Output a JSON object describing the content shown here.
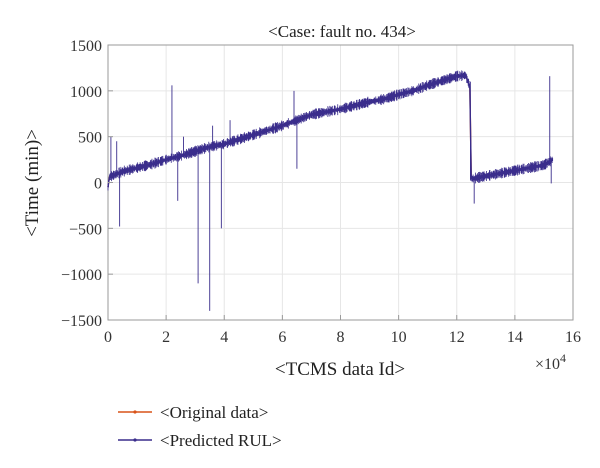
{
  "chart_data": {
    "type": "line",
    "title": "<Case: fault no. 434>",
    "xlabel": "<TCMS data Id>",
    "ylabel": "<Time (min)>",
    "x_multiplier": {
      "base": "×10",
      "exponent": "4"
    },
    "xlim": [
      0,
      16
    ],
    "ylim": [
      -1500,
      1500
    ],
    "x_ticks": [
      "0",
      "2",
      "4",
      "6",
      "8",
      "10",
      "12",
      "14",
      "16"
    ],
    "y_ticks": [
      "−1500",
      "−1000",
      "−500",
      "0",
      "500",
      "1000",
      "1500"
    ],
    "grid": true,
    "legend_position": "bottom-left",
    "series": [
      {
        "name": "<Original data>",
        "color": "#d95319",
        "x": [
          0.0,
          0.05,
          0.5,
          1.0,
          1.5,
          2.0,
          2.5,
          3.0,
          3.5,
          4.0,
          4.5,
          5.0,
          5.5,
          6.0,
          6.5,
          7.0,
          7.5,
          8.0,
          8.5,
          9.0,
          9.5,
          10.0,
          10.5,
          11.0,
          11.5,
          12.0,
          12.3,
          12.45,
          12.5,
          13.0,
          13.5,
          14.0,
          14.5,
          15.0,
          15.3
        ],
        "y": [
          -50,
          60,
          120,
          160,
          200,
          250,
          290,
          340,
          390,
          420,
          470,
          520,
          570,
          620,
          680,
          740,
          770,
          800,
          840,
          880,
          910,
          960,
          1000,
          1060,
          1110,
          1160,
          1170,
          1050,
          40,
          70,
          100,
          130,
          160,
          190,
          250
        ]
      },
      {
        "name": "<Predicted RUL>",
        "color": "#3a2d8c",
        "x": [
          0.0,
          0.05,
          0.5,
          1.0,
          1.5,
          2.0,
          2.5,
          3.0,
          3.5,
          4.0,
          4.5,
          5.0,
          5.5,
          6.0,
          6.5,
          7.0,
          7.5,
          8.0,
          8.5,
          9.0,
          9.5,
          10.0,
          10.5,
          11.0,
          11.5,
          12.0,
          12.3,
          12.45,
          12.5,
          13.0,
          13.5,
          14.0,
          14.5,
          15.0,
          15.3
        ],
        "y": [
          -50,
          60,
          120,
          160,
          200,
          250,
          290,
          340,
          390,
          420,
          470,
          520,
          570,
          620,
          680,
          740,
          770,
          800,
          840,
          880,
          910,
          960,
          1000,
          1060,
          1110,
          1160,
          1170,
          1050,
          40,
          70,
          100,
          130,
          160,
          190,
          250
        ],
        "spikes": [
          {
            "x": 0.1,
            "y": 500
          },
          {
            "x": 0.3,
            "y": 450
          },
          {
            "x": 0.4,
            "y": -480
          },
          {
            "x": 2.2,
            "y": 1060
          },
          {
            "x": 2.4,
            "y": -200
          },
          {
            "x": 2.6,
            "y": 500
          },
          {
            "x": 3.1,
            "y": -1100
          },
          {
            "x": 3.5,
            "y": -1400
          },
          {
            "x": 3.6,
            "y": 620
          },
          {
            "x": 3.9,
            "y": -500
          },
          {
            "x": 4.2,
            "y": 680
          },
          {
            "x": 6.4,
            "y": 1000
          },
          {
            "x": 6.5,
            "y": 150
          },
          {
            "x": 12.6,
            "y": -230
          },
          {
            "x": 15.2,
            "y": 1160
          },
          {
            "x": 15.25,
            "y": -10
          }
        ]
      }
    ]
  }
}
